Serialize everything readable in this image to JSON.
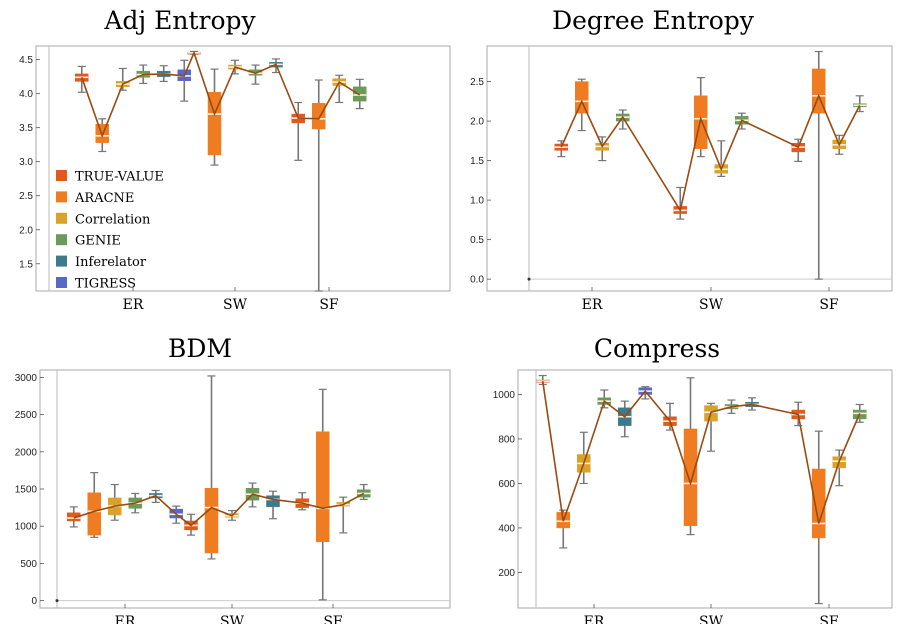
{
  "legend": [
    {
      "label": "TRUE-VALUE",
      "color": "#e05a1c"
    },
    {
      "label": "ARACNE",
      "color": "#f07c22"
    },
    {
      "label": "Correlation",
      "color": "#d9a228"
    },
    {
      "label": "GENIE",
      "color": "#6b9a5a"
    },
    {
      "label": "Inferelator",
      "color": "#3f7a8c"
    },
    {
      "label": "TIGRESS",
      "color": "#5668c8"
    }
  ],
  "colors": {
    "trend_line": "#9a4a10",
    "whisker": "#777777",
    "median": "#fff2dc",
    "frame": "#aaaaaa"
  },
  "chart_data": [
    {
      "type": "box",
      "title": "Adj Entropy",
      "categories": [
        "ER",
        "SW",
        "SF"
      ],
      "ylim": [
        1.1,
        4.7
      ],
      "yticks": [
        "1.5",
        "2.0",
        "2.5",
        "3.0",
        "3.5",
        "4.0",
        "4.5"
      ],
      "ytick_values": [
        1.5,
        2.0,
        2.5,
        3.0,
        3.5,
        4.0,
        4.5
      ],
      "grid": false,
      "legend_position": "lower-left inside",
      "groups": [
        {
          "category": "ER",
          "boxes": [
            {
              "series": "TRUE-VALUE",
              "min": 4.02,
              "q1": 4.18,
              "median": 4.24,
              "q3": 4.29,
              "max": 4.4
            },
            {
              "series": "ARACNE",
              "min": 3.15,
              "q1": 3.28,
              "median": 3.38,
              "q3": 3.55,
              "max": 3.63
            },
            {
              "series": "Correlation",
              "min": 4.05,
              "q1": 4.1,
              "median": 4.14,
              "q3": 4.18,
              "max": 4.37
            },
            {
              "series": "GENIE",
              "min": 4.15,
              "q1": 4.24,
              "median": 4.28,
              "q3": 4.33,
              "max": 4.42
            },
            {
              "series": "Inferelator",
              "min": 4.18,
              "q1": 4.25,
              "median": 4.29,
              "q3": 4.33,
              "max": 4.41
            },
            {
              "series": "TIGRESS",
              "min": 3.89,
              "q1": 4.19,
              "median": 4.26,
              "q3": 4.35,
              "max": 4.49
            }
          ]
        },
        {
          "category": "SW",
          "boxes": [
            {
              "series": "TRUE-VALUE",
              "min": 4.58,
              "q1": 4.59,
              "median": 4.6,
              "q3": 4.61,
              "max": 4.62
            },
            {
              "series": "ARACNE",
              "min": 2.95,
              "q1": 3.1,
              "median": 3.7,
              "q3": 4.02,
              "max": 4.36
            },
            {
              "series": "Correlation",
              "min": 4.29,
              "q1": 4.36,
              "median": 4.39,
              "q3": 4.42,
              "max": 4.49
            },
            {
              "series": "GENIE",
              "min": 4.14,
              "q1": 4.27,
              "median": 4.3,
              "q3": 4.35,
              "max": 4.42
            },
            {
              "series": "Inferelator",
              "min": 4.31,
              "q1": 4.39,
              "median": 4.43,
              "q3": 4.46,
              "max": 4.51
            }
          ]
        },
        {
          "category": "SF",
          "boxes": [
            {
              "series": "TRUE-VALUE",
              "min": 3.02,
              "q1": 3.57,
              "median": 3.64,
              "q3": 3.7,
              "max": 3.87
            },
            {
              "series": "ARACNE",
              "min": 1.1,
              "q1": 3.48,
              "median": 3.63,
              "q3": 3.86,
              "max": 4.2
            },
            {
              "series": "Correlation",
              "min": 3.87,
              "q1": 4.12,
              "median": 4.17,
              "q3": 4.22,
              "max": 4.27
            },
            {
              "series": "GENIE",
              "min": 3.78,
              "q1": 3.89,
              "median": 3.98,
              "q3": 4.1,
              "max": 4.21
            }
          ]
        }
      ]
    },
    {
      "type": "box",
      "title": "Degree Entropy",
      "categories": [
        "ER",
        "SW",
        "SF"
      ],
      "ylim": [
        -0.15,
        2.95
      ],
      "yticks": [
        "0.0",
        "0.5",
        "1.0",
        "1.5",
        "2.0",
        "2.5"
      ],
      "ytick_values": [
        0.0,
        0.5,
        1.0,
        1.5,
        2.0,
        2.5
      ],
      "grid": false,
      "groups": [
        {
          "category": "ER",
          "boxes": [
            {
              "series": "TRUE-VALUE",
              "min": 1.55,
              "q1": 1.63,
              "median": 1.67,
              "q3": 1.71,
              "max": 1.75
            },
            {
              "series": "ARACNE",
              "min": 1.88,
              "q1": 2.1,
              "median": 2.25,
              "q3": 2.5,
              "max": 2.53
            },
            {
              "series": "Correlation",
              "min": 1.5,
              "q1": 1.63,
              "median": 1.68,
              "q3": 1.72,
              "max": 1.8
            },
            {
              "series": "GENIE",
              "min": 1.9,
              "q1": 2.0,
              "median": 2.05,
              "q3": 2.09,
              "max": 2.14
            }
          ]
        },
        {
          "category": "SW",
          "boxes": [
            {
              "series": "TRUE-VALUE",
              "min": 0.76,
              "q1": 0.83,
              "median": 0.87,
              "q3": 0.92,
              "max": 1.16
            },
            {
              "series": "ARACNE",
              "min": 1.55,
              "q1": 1.65,
              "median": 2.03,
              "q3": 2.32,
              "max": 2.55
            },
            {
              "series": "Correlation",
              "min": 1.3,
              "q1": 1.34,
              "median": 1.39,
              "q3": 1.45,
              "max": 1.75
            },
            {
              "series": "GENIE",
              "min": 1.9,
              "q1": 1.96,
              "median": 2.01,
              "q3": 2.06,
              "max": 2.1
            }
          ]
        },
        {
          "category": "SF",
          "boxes": [
            {
              "series": "TRUE-VALUE",
              "min": 1.49,
              "q1": 1.61,
              "median": 1.67,
              "q3": 1.72,
              "max": 1.77
            },
            {
              "series": "ARACNE",
              "min": 0.0,
              "q1": 2.1,
              "median": 2.32,
              "q3": 2.66,
              "max": 2.88
            },
            {
              "series": "Correlation",
              "min": 1.58,
              "q1": 1.65,
              "median": 1.7,
              "q3": 1.76,
              "max": 1.82
            },
            {
              "series": "GENIE",
              "min": 2.12,
              "q1": 2.18,
              "median": 2.2,
              "q3": 2.22,
              "max": 2.32
            }
          ]
        }
      ]
    },
    {
      "type": "box",
      "title": "BDM",
      "categories": [
        "ER",
        "SW",
        "SF"
      ],
      "ylim": [
        -100,
        3100
      ],
      "yticks": [
        "0",
        "500",
        "1000",
        "1500",
        "2000",
        "2500",
        "3000"
      ],
      "ytick_values": [
        0,
        500,
        1000,
        1500,
        2000,
        2500,
        3000
      ],
      "grid": false,
      "groups": [
        {
          "category": "ER",
          "boxes": [
            {
              "series": "TRUE-VALUE",
              "min": 990,
              "q1": 1070,
              "median": 1110,
              "q3": 1180,
              "max": 1260
            },
            {
              "series": "ARACNE",
              "min": 850,
              "q1": 880,
              "median": 1200,
              "q3": 1450,
              "max": 1720
            },
            {
              "series": "Correlation",
              "min": 1080,
              "q1": 1150,
              "median": 1270,
              "q3": 1380,
              "max": 1560
            },
            {
              "series": "GENIE",
              "min": 1180,
              "q1": 1240,
              "median": 1310,
              "q3": 1380,
              "max": 1440
            },
            {
              "series": "Inferelator",
              "min": 1320,
              "q1": 1380,
              "median": 1410,
              "q3": 1440,
              "max": 1480
            },
            {
              "series": "TIGRESS",
              "min": 1040,
              "q1": 1110,
              "median": 1160,
              "q3": 1230,
              "max": 1270
            }
          ]
        },
        {
          "category": "SW",
          "boxes": [
            {
              "series": "TRUE-VALUE",
              "min": 880,
              "q1": 950,
              "median": 1010,
              "q3": 1070,
              "max": 1160
            },
            {
              "series": "ARACNE",
              "min": 560,
              "q1": 640,
              "median": 1250,
              "q3": 1510,
              "max": 3020
            },
            {
              "series": "Correlation",
              "min": 1080,
              "q1": 1120,
              "median": 1140,
              "q3": 1170,
              "max": 1210
            },
            {
              "series": "GENIE",
              "min": 1260,
              "q1": 1350,
              "median": 1430,
              "q3": 1510,
              "max": 1580
            },
            {
              "series": "Inferelator",
              "min": 1100,
              "q1": 1260,
              "median": 1360,
              "q3": 1410,
              "max": 1470
            }
          ]
        },
        {
          "category": "SF",
          "boxes": [
            {
              "series": "TRUE-VALUE",
              "min": 1220,
              "q1": 1250,
              "median": 1310,
              "q3": 1370,
              "max": 1450
            },
            {
              "series": "ARACNE",
              "min": 10,
              "q1": 790,
              "median": 1240,
              "q3": 2270,
              "max": 2840
            },
            {
              "series": "Correlation",
              "min": 910,
              "q1": 1270,
              "median": 1290,
              "q3": 1320,
              "max": 1390
            },
            {
              "series": "GENIE",
              "min": 1360,
              "q1": 1390,
              "median": 1440,
              "q3": 1490,
              "max": 1560
            }
          ]
        }
      ]
    },
    {
      "type": "box",
      "title": "Compress",
      "categories": [
        "ER",
        "SW",
        "SF"
      ],
      "ylim": [
        40,
        1110
      ],
      "yticks": [
        "200",
        "400",
        "600",
        "800",
        "1000"
      ],
      "ytick_values": [
        200,
        400,
        600,
        800,
        1000
      ],
      "grid": false,
      "groups": [
        {
          "category": "ER",
          "boxes": [
            {
              "series": "TRUE-VALUE",
              "min": 1045,
              "q1": 1055,
              "median": 1060,
              "q3": 1065,
              "max": 1085
            },
            {
              "series": "ARACNE",
              "min": 310,
              "q1": 400,
              "median": 430,
              "q3": 470,
              "max": 480
            },
            {
              "series": "Correlation",
              "min": 600,
              "q1": 650,
              "median": 690,
              "q3": 730,
              "max": 830
            },
            {
              "series": "GENIE",
              "min": 940,
              "q1": 955,
              "median": 970,
              "q3": 985,
              "max": 1020
            },
            {
              "series": "Inferelator",
              "min": 810,
              "q1": 860,
              "median": 900,
              "q3": 940,
              "max": 970
            },
            {
              "series": "TIGRESS",
              "min": 980,
              "q1": 1000,
              "median": 1015,
              "q3": 1030,
              "max": 1035
            }
          ]
        },
        {
          "category": "SW",
          "boxes": [
            {
              "series": "TRUE-VALUE",
              "min": 840,
              "q1": 860,
              "median": 880,
              "q3": 900,
              "max": 960
            },
            {
              "series": "ARACNE",
              "min": 370,
              "q1": 410,
              "median": 600,
              "q3": 845,
              "max": 1075
            },
            {
              "series": "Correlation",
              "min": 745,
              "q1": 880,
              "median": 920,
              "q3": 950,
              "max": 960
            },
            {
              "series": "GENIE",
              "min": 915,
              "q1": 935,
              "median": 945,
              "q3": 955,
              "max": 975
            },
            {
              "series": "Inferelator",
              "min": 930,
              "q1": 945,
              "median": 955,
              "q3": 965,
              "max": 985
            }
          ]
        },
        {
          "category": "SF",
          "boxes": [
            {
              "series": "TRUE-VALUE",
              "min": 860,
              "q1": 890,
              "median": 910,
              "q3": 930,
              "max": 965
            },
            {
              "series": "ARACNE",
              "min": 60,
              "q1": 355,
              "median": 420,
              "q3": 665,
              "max": 835
            },
            {
              "series": "Correlation",
              "min": 590,
              "q1": 670,
              "median": 700,
              "q3": 720,
              "max": 750
            },
            {
              "series": "GENIE",
              "min": 875,
              "q1": 890,
              "median": 915,
              "q3": 930,
              "max": 955
            }
          ]
        }
      ]
    }
  ]
}
